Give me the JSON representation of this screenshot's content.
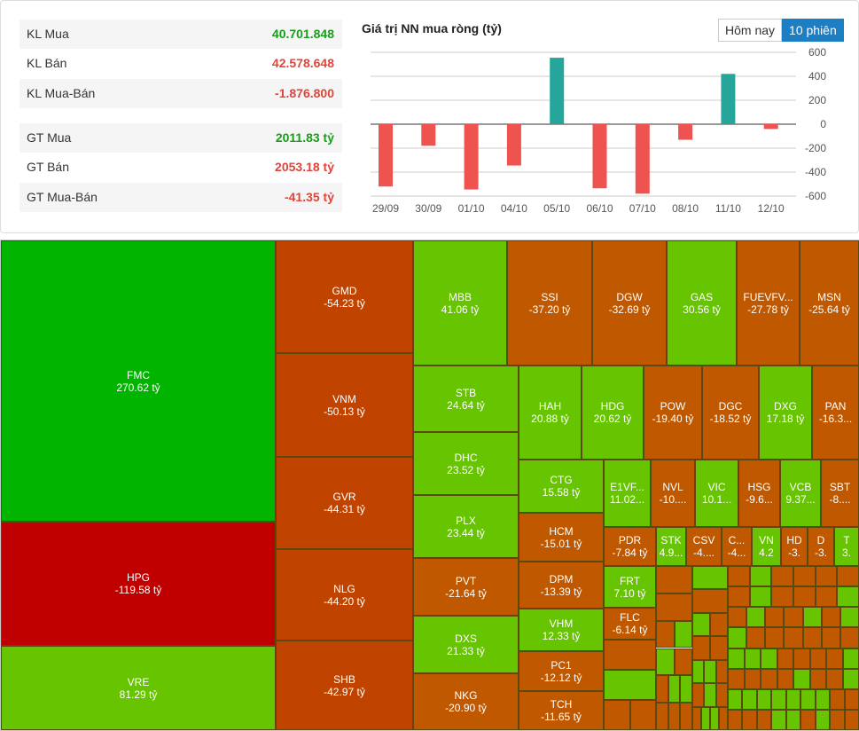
{
  "summary": [
    {
      "label": "KL Mua",
      "value": "40.701.848",
      "tone": "g"
    },
    {
      "label": "KL Bán",
      "value": "42.578.648",
      "tone": "r"
    },
    {
      "label": "KL Mua-Bán",
      "value": "-1.876.800",
      "tone": "r"
    },
    {
      "label": "GT Mua",
      "value": "2011.83 tỷ",
      "tone": "g"
    },
    {
      "label": "GT Bán",
      "value": "2053.18 tỷ",
      "tone": "r"
    },
    {
      "label": "GT Mua-Bán",
      "value": "-41.35 tỷ",
      "tone": "r"
    }
  ],
  "chart_title": "Giá trị NN mua ròng (tỷ)",
  "buttons": {
    "today": "Hôm nay",
    "sessions": "10 phiên"
  },
  "chart_data": {
    "type": "bar",
    "title": "Giá trị NN mua ròng (tỷ)",
    "categories": [
      "29/09",
      "30/09",
      "01/10",
      "04/10",
      "05/10",
      "06/10",
      "07/10",
      "08/10",
      "11/10",
      "12/10"
    ],
    "values": [
      -520,
      -180,
      -545,
      -345,
      555,
      -535,
      -580,
      -130,
      420,
      -40
    ],
    "yticks": [
      600,
      400,
      200,
      0,
      -200,
      -400,
      -600
    ],
    "ylim": [
      -600,
      600
    ],
    "colors": {
      "positive": "#26a69a",
      "negative": "#ef5350"
    }
  },
  "colors": {
    "strong_up": "#00b400",
    "up": "#66c400",
    "strong_down": "#c00000",
    "down_dark": "#c04400",
    "down": "#c05800"
  },
  "tiles": [
    [
      "FMC",
      "270.62 tỷ"
    ],
    [
      "HPG",
      "-119.58 tỷ"
    ],
    [
      "VRE",
      "81.29 tỷ"
    ],
    [
      "GMD",
      "-54.23 tỷ"
    ],
    [
      "VNM",
      "-50.13 tỷ"
    ],
    [
      "GVR",
      "-44.31 tỷ"
    ],
    [
      "NLG",
      "-44.20 tỷ"
    ],
    [
      "SHB",
      "-42.97 tỷ"
    ],
    [
      "MBB",
      "41.06 tỷ"
    ],
    [
      "SSI",
      "-37.20 tỷ"
    ],
    [
      "DGW",
      "-32.69 tỷ"
    ],
    [
      "GAS",
      "30.56 tỷ"
    ],
    [
      "FUEVFV...",
      "-27.78 tỷ"
    ],
    [
      "MSN",
      "-25.64 tỷ"
    ],
    [
      "STB",
      "24.64 tỷ"
    ],
    [
      "DHC",
      "23.52 tỷ"
    ],
    [
      "PLX",
      "23.44 tỷ"
    ],
    [
      "PVT",
      "-21.64 tỷ"
    ],
    [
      "DXS",
      "21.33 tỷ"
    ],
    [
      "NKG",
      "-20.90 tỷ"
    ],
    [
      "HAH",
      "20.88 tỷ"
    ],
    [
      "HDG",
      "20.62 tỷ"
    ],
    [
      "POW",
      "-19.40 tỷ"
    ],
    [
      "DGC",
      "-18.52 tỷ"
    ],
    [
      "DXG",
      "17.18 tỷ"
    ],
    [
      "PAN",
      "-16.3..."
    ],
    [
      "CTG",
      "15.58 tỷ"
    ],
    [
      "HCM",
      "-15.01 tỷ"
    ],
    [
      "DPM",
      "-13.39 tỷ"
    ],
    [
      "VHM",
      "12.33 tỷ"
    ],
    [
      "PC1",
      "-12.12 tỷ"
    ],
    [
      "TCH",
      "-11.65 tỷ"
    ],
    [
      "E1VF...",
      "11.02..."
    ],
    [
      "NVL",
      "-10...."
    ],
    [
      "VIC",
      "10.1..."
    ],
    [
      "HSG",
      "-9.6..."
    ],
    [
      "VCB",
      "9.37..."
    ],
    [
      "SBT",
      "-8...."
    ],
    [
      "PDR",
      "-7.84 tỷ"
    ],
    [
      "STK",
      "4.9..."
    ],
    [
      "CSV",
      "-4...."
    ],
    [
      "C...",
      "-4..."
    ],
    [
      "VN",
      "4.2"
    ],
    [
      "HD",
      "-3."
    ],
    [
      "D",
      "-3."
    ],
    [
      "T",
      "3."
    ],
    [
      "FRT",
      "7.10 tỷ"
    ],
    [
      "FLC",
      "-6.14 tỷ"
    ]
  ]
}
